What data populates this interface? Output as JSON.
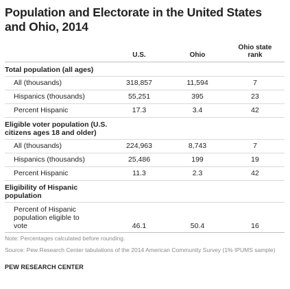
{
  "title": "Population and Electorate in the United States and Ohio, 2014",
  "columns": {
    "us": "U.S.",
    "ohio": "Ohio",
    "rank": "Ohio state rank"
  },
  "sections": [
    {
      "heading": "Total population (all ages)",
      "rows": [
        {
          "label": "All (thousands)",
          "us": "318,857",
          "ohio": "11,594",
          "rank": "7"
        },
        {
          "label": "Hispanics (thousands)",
          "us": "55,251",
          "ohio": "395",
          "rank": "23"
        },
        {
          "label": "Percent Hispanic",
          "us": "17.3",
          "ohio": "3.4",
          "rank": "42"
        }
      ]
    },
    {
      "heading": "Eligible voter population (U.S. citizens ages 18 and older)",
      "rows": [
        {
          "label": "All (thousands)",
          "us": "224,963",
          "ohio": "8,743",
          "rank": "7"
        },
        {
          "label": "Hispanics (thousands)",
          "us": "25,486",
          "ohio": "199",
          "rank": "19"
        },
        {
          "label": "Percent Hispanic",
          "us": "11.3",
          "ohio": "2.3",
          "rank": "42"
        }
      ]
    },
    {
      "heading": "Eligibility of Hispanic population",
      "rows": [
        {
          "label": "Percent of Hispanic population eligible to vote",
          "us": "46.1",
          "ohio": "50.4",
          "rank": "16"
        }
      ]
    }
  ],
  "note": "Note: Percentages calculated before rounding.",
  "source": "Source: Pew Research Center tabulations of the 2014 American Community Survey (1% IPUMS sample)",
  "brand": "PEW RESEARCH CENTER"
}
